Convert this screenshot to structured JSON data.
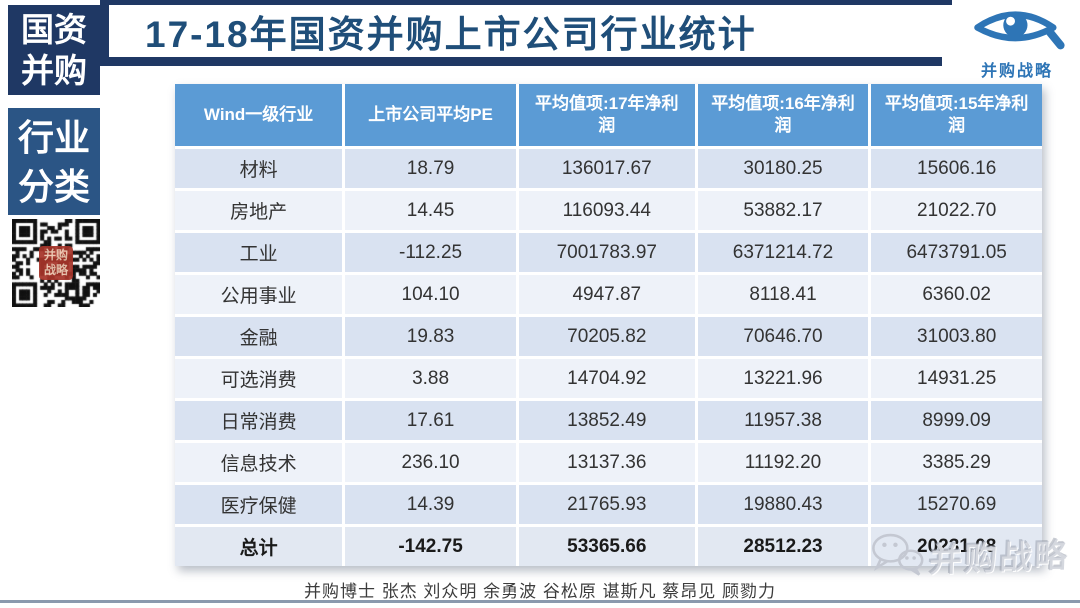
{
  "slide_title": "17-18年国资并购上市公司行业统计",
  "sidebar": {
    "badge_top": {
      "line1": "国资",
      "line2": "并购"
    },
    "badge_bottom": {
      "line1": "行业",
      "line2": "分类"
    },
    "qr_seal_line1": "并购",
    "qr_seal_line2": "战略"
  },
  "brand": {
    "logo_text": "并购战略",
    "watermark_text": "并购战略"
  },
  "footer": {
    "authors": "并购博士 张杰 刘众明 余勇波 谷松原 谌斯凡 蔡昂见 顾勠力"
  },
  "colors": {
    "navy": "#1f3864",
    "badge2": "#2b5585",
    "title": "#1f4e79",
    "header_bg": "#5b9bd5",
    "row_dark": "#d9e2f1",
    "row_light": "#eef2f9",
    "row_total": "#e2e8f2",
    "logo_blue": "#2e75b6"
  },
  "table": {
    "headers": [
      "Wind一级行业",
      "上市公司平均PE",
      "平均值项:17年净利润",
      "平均值项:16年净利润",
      "平均值项:15年净利润"
    ],
    "rows": [
      [
        "材料",
        "18.79",
        "136017.67",
        "30180.25",
        "15606.16"
      ],
      [
        "房地产",
        "14.45",
        "116093.44",
        "53882.17",
        "21022.70"
      ],
      [
        "工业",
        "-112.25",
        "7001783.97",
        "6371214.72",
        "6473791.05"
      ],
      [
        "公用事业",
        "104.10",
        "4947.87",
        "8118.41",
        "6360.02"
      ],
      [
        "金融",
        "19.83",
        "70205.82",
        "70646.70",
        "31003.80"
      ],
      [
        "可选消费",
        "3.88",
        "14704.92",
        "13221.96",
        "14931.25"
      ],
      [
        "日常消费",
        "17.61",
        "13852.49",
        "11957.38",
        "8999.09"
      ],
      [
        "信息技术",
        "236.10",
        "13137.36",
        "11192.20",
        "3385.29"
      ],
      [
        "医疗保健",
        "14.39",
        "21765.93",
        "19880.43",
        "15270.69"
      ],
      [
        "总计",
        "-142.75",
        "53365.66",
        "28512.23",
        "20231.08"
      ]
    ]
  }
}
